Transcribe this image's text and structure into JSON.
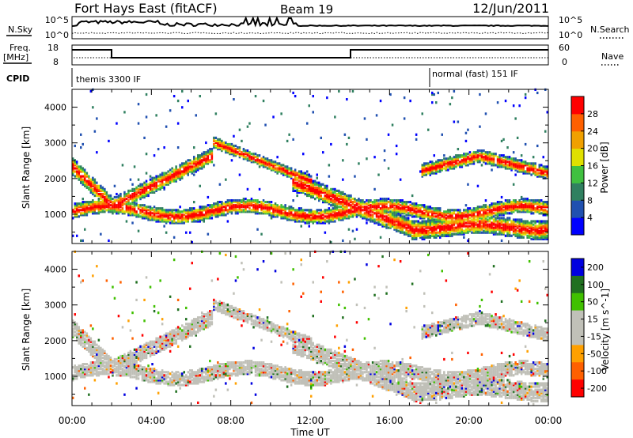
{
  "header": {
    "station": "Fort Hays East (fitACF)",
    "beam": "Beam 19",
    "date": "12/Jun/2011"
  },
  "top_panels": {
    "nsky_label": "N.Sky",
    "nsearch_label": "N.Search",
    "nsky_ticks": [
      "10^5",
      "10^0"
    ],
    "nsearch_ticks": [
      "10^5",
      "10^0"
    ],
    "freq_label": "Freq.",
    "freq_unit": "[MHz]",
    "freq_ticks": [
      "18",
      "8"
    ],
    "nave_label": "Nave",
    "nave_ticks": [
      "60",
      "0"
    ],
    "cpid_label": "CPID",
    "cpid_segments": [
      "themis 3300 IF",
      "normal (fast) 151 IF"
    ]
  },
  "colors": {
    "power_scale": [
      "#0000ff",
      "#2050b0",
      "#308060",
      "#40c040",
      "#e0e000",
      "#f0a000",
      "#ff6000",
      "#ff0000"
    ],
    "velocity_scale": [
      "#0000e0",
      "#207020",
      "#40c000",
      "#c0c0b8",
      "#c0c0b8",
      "#ffa000",
      "#ff6000",
      "#ff0000"
    ]
  },
  "chart_data": [
    {
      "type": "heatmap",
      "panel": "power",
      "ylabel": "Slant Range [km]",
      "xlabel": "",
      "x_ticks": [
        "00:00",
        "04:00",
        "08:00",
        "12:00",
        "16:00",
        "20:00",
        "00:00"
      ],
      "x_range_hours": [
        0,
        24
      ],
      "y_ticks": [
        "1000",
        "2000",
        "3000",
        "4000"
      ],
      "y_range_km": [
        180,
        4500
      ],
      "colorbar_label": "Power [dB]",
      "colorbar_ticks": [
        "4",
        "8",
        "12",
        "16",
        "20",
        "24",
        "28"
      ],
      "colorbar_range": [
        0,
        32
      ]
    },
    {
      "type": "heatmap",
      "panel": "velocity",
      "ylabel": "Slant Range [km]",
      "xlabel": "Time UT",
      "x_ticks": [
        "00:00",
        "04:00",
        "08:00",
        "12:00",
        "16:00",
        "20:00",
        "00:00"
      ],
      "x_range_hours": [
        0,
        24
      ],
      "y_ticks": [
        "1000",
        "2000",
        "3000",
        "4000"
      ],
      "y_range_km": [
        180,
        4500
      ],
      "colorbar_label": "Velocity [m s^-1]",
      "colorbar_ticks": [
        "200",
        "100",
        "50",
        "15",
        "-15",
        "-50",
        "-100",
        "-200"
      ]
    }
  ]
}
